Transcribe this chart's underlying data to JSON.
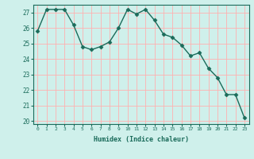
{
  "x": [
    0,
    1,
    2,
    3,
    4,
    5,
    6,
    7,
    8,
    9,
    10,
    11,
    12,
    13,
    14,
    15,
    16,
    17,
    18,
    19,
    20,
    21,
    22,
    23
  ],
  "y": [
    25.8,
    27.2,
    27.2,
    27.2,
    26.2,
    24.8,
    24.6,
    24.8,
    25.1,
    26.0,
    27.2,
    26.9,
    27.2,
    26.5,
    25.6,
    25.4,
    24.9,
    24.2,
    24.4,
    23.4,
    22.8,
    21.7,
    21.7,
    20.2
  ],
  "xlabel": "Humidex (Indice chaleur)",
  "ylim": [
    19.8,
    27.5
  ],
  "xlim": [
    -0.5,
    23.5
  ],
  "yticks": [
    20,
    21,
    22,
    23,
    24,
    25,
    26,
    27
  ],
  "xticks": [
    0,
    1,
    2,
    3,
    4,
    5,
    6,
    7,
    8,
    9,
    10,
    11,
    12,
    13,
    14,
    15,
    16,
    17,
    18,
    19,
    20,
    21,
    22,
    23
  ],
  "line_color": "#1a6b5a",
  "marker": "D",
  "marker_size": 2.5,
  "bg_color": "#cff0eb",
  "grid_color": "#ffb0b0",
  "tick_color": "#1a6b5a",
  "label_color": "#1a6b5a"
}
